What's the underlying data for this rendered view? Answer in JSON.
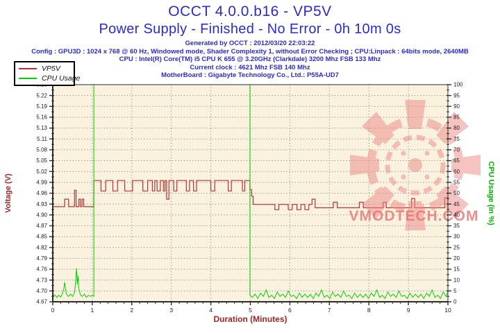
{
  "header": {
    "title": "OCCT 4.0.0.b16 - VP5V",
    "subtitle": "Power Supply - Finished - No Error - 0h 10m 0s",
    "info_lines": [
      "Generated by OCCT : 2012/03/20 22:03:22",
      "Config : GPU3D : 1024 x 768 @ 60 Hz, Windowed mode, Shader Complexity 1, without Error Checking ; CPU:Linpack : 64bits mode, 2640MB",
      "CPU : Intel(R) Core(TM) i5 CPU K 655 @ 3.20GHz (Clarkdale) 3200 Mhz FSB 133 Mhz",
      "Current clock : 4621 Mhz FSB 140 Mhz",
      "MotherBoard : Gigabyte Technology Co., Ltd.: P55A-UD7"
    ],
    "text_color": "#2a2ace"
  },
  "legend": {
    "items": [
      {
        "label": "VP5V",
        "color": "#b43434"
      },
      {
        "label": "CPU Usage",
        "color": "#00d400"
      }
    ]
  },
  "watermark": {
    "text": "VMODTECH.COM",
    "color": "#e86a6a",
    "logo_color": "#ee8888"
  },
  "colors": {
    "plot_background": "#faf1de",
    "axis": "#2b2b2b",
    "grid_horizontal": "#9c9c9c",
    "grid_vertical": "#7d7d7d",
    "voltage_label": "#a02424",
    "duration_label": "#a02424",
    "cpu_label": "#00b400"
  },
  "chart_data": {
    "type": "line",
    "title": "OCCT 4.0.0.b16 - VP5V",
    "xlabel": "Duration (Minutes)",
    "ylabel_left": "Voltage (V)",
    "ylabel_right": "CPU Usage (in %)",
    "x_range": [
      0,
      10
    ],
    "x_major_step": 1,
    "x_minor_step": 0.2,
    "x_tick_labels": [
      "0",
      "1",
      "2",
      "3",
      "4",
      "5",
      "6",
      "7",
      "8",
      "9",
      "10"
    ],
    "y_left_range": [
      4.67,
      5.25
    ],
    "y_left_tick_labels": [
      "4.67",
      "4.70",
      "4.73",
      "4.76",
      "4.79",
      "4.82",
      "4.85",
      "4.87",
      "4.90",
      "4.93",
      "4.96",
      "4.99",
      "5.02",
      "5.05",
      "5.08",
      "5.11",
      "5.13",
      "5.16",
      "5.19",
      "5.22",
      "5.25"
    ],
    "y_right_range": [
      0,
      100
    ],
    "y_right_tick_labels": [
      "0",
      "5",
      "10",
      "15",
      "20",
      "25",
      "30",
      "35",
      "40",
      "45",
      "50",
      "55",
      "60",
      "65",
      "70",
      "75",
      "80",
      "85",
      "90",
      "95",
      "100"
    ],
    "grid": true,
    "legend_position": "top-left",
    "series": [
      {
        "name": "VP5V",
        "axis": "left",
        "color": "#b43434",
        "points": [
          [
            0,
            4.924
          ],
          [
            0.3,
            4.924
          ],
          [
            0.3,
            4.944
          ],
          [
            0.4,
            4.944
          ],
          [
            0.4,
            4.924
          ],
          [
            0.55,
            4.924
          ],
          [
            0.55,
            4.968
          ],
          [
            0.59,
            4.968
          ],
          [
            0.59,
            4.924
          ],
          [
            0.66,
            4.924
          ],
          [
            0.66,
            4.944
          ],
          [
            0.7,
            4.944
          ],
          [
            0.7,
            4.924
          ],
          [
            0.74,
            4.924
          ],
          [
            0.74,
            4.944
          ],
          [
            0.78,
            4.944
          ],
          [
            0.78,
            4.924
          ],
          [
            1.04,
            4.924
          ],
          [
            1.04,
            4.994
          ],
          [
            1.22,
            4.994
          ],
          [
            1.22,
            4.966
          ],
          [
            1.34,
            4.966
          ],
          [
            1.34,
            4.994
          ],
          [
            1.52,
            4.994
          ],
          [
            1.52,
            4.966
          ],
          [
            1.64,
            4.966
          ],
          [
            1.64,
            4.994
          ],
          [
            1.82,
            4.994
          ],
          [
            1.82,
            4.966
          ],
          [
            2.02,
            4.966
          ],
          [
            2.02,
            4.994
          ],
          [
            2.28,
            4.994
          ],
          [
            2.28,
            4.966
          ],
          [
            2.4,
            4.966
          ],
          [
            2.4,
            4.994
          ],
          [
            2.52,
            4.994
          ],
          [
            2.52,
            4.966
          ],
          [
            2.58,
            4.966
          ],
          [
            2.58,
            4.994
          ],
          [
            2.64,
            4.994
          ],
          [
            2.64,
            4.966
          ],
          [
            2.72,
            4.966
          ],
          [
            2.72,
            4.994
          ],
          [
            2.8,
            4.994
          ],
          [
            2.8,
            4.966
          ],
          [
            2.84,
            4.966
          ],
          [
            2.84,
            4.994
          ],
          [
            2.88,
            4.994
          ],
          [
            2.88,
            4.944
          ],
          [
            2.94,
            4.944
          ],
          [
            2.94,
            4.994
          ],
          [
            3.06,
            4.994
          ],
          [
            3.06,
            4.966
          ],
          [
            3.14,
            4.966
          ],
          [
            3.14,
            4.994
          ],
          [
            3.38,
            4.994
          ],
          [
            3.38,
            4.966
          ],
          [
            3.46,
            4.966
          ],
          [
            3.46,
            4.994
          ],
          [
            3.56,
            4.994
          ],
          [
            3.56,
            4.966
          ],
          [
            3.64,
            4.966
          ],
          [
            3.64,
            4.994
          ],
          [
            4.0,
            4.994
          ],
          [
            4.0,
            4.966
          ],
          [
            4.1,
            4.966
          ],
          [
            4.1,
            4.994
          ],
          [
            4.44,
            4.994
          ],
          [
            4.44,
            4.966
          ],
          [
            4.52,
            4.966
          ],
          [
            4.52,
            4.994
          ],
          [
            4.8,
            4.994
          ],
          [
            4.8,
            4.966
          ],
          [
            4.86,
            4.966
          ],
          [
            4.86,
            4.994
          ],
          [
            4.99,
            4.994
          ],
          [
            4.99,
            4.97
          ],
          [
            5.03,
            4.97
          ],
          [
            5.03,
            4.952
          ],
          [
            5.07,
            4.952
          ],
          [
            5.07,
            4.93
          ],
          [
            5.62,
            4.93
          ],
          [
            5.62,
            4.916
          ],
          [
            5.72,
            4.916
          ],
          [
            5.72,
            4.93
          ],
          [
            5.96,
            4.93
          ],
          [
            5.96,
            4.916
          ],
          [
            6.06,
            4.916
          ],
          [
            6.06,
            4.93
          ],
          [
            6.18,
            4.93
          ],
          [
            6.18,
            4.916
          ],
          [
            6.28,
            4.916
          ],
          [
            6.28,
            4.93
          ],
          [
            6.38,
            4.93
          ],
          [
            6.38,
            4.916
          ],
          [
            6.48,
            4.916
          ],
          [
            6.48,
            4.93
          ],
          [
            6.56,
            4.93
          ],
          [
            6.56,
            4.944
          ],
          [
            6.64,
            4.944
          ],
          [
            6.64,
            4.921
          ],
          [
            7.1,
            4.921
          ],
          [
            7.1,
            4.936
          ],
          [
            7.2,
            4.936
          ],
          [
            7.2,
            4.921
          ],
          [
            7.76,
            4.921
          ],
          [
            7.76,
            4.936
          ],
          [
            7.86,
            4.936
          ],
          [
            7.86,
            4.921
          ],
          [
            8.36,
            4.921
          ],
          [
            8.36,
            4.936
          ],
          [
            8.44,
            4.936
          ],
          [
            8.44,
            4.921
          ],
          [
            9.08,
            4.921
          ],
          [
            9.08,
            4.946
          ],
          [
            9.16,
            4.946
          ],
          [
            9.16,
            4.921
          ],
          [
            9.92,
            4.921
          ],
          [
            9.92,
            4.948
          ],
          [
            10,
            4.948
          ]
        ]
      },
      {
        "name": "CPU Usage",
        "axis": "right",
        "color": "#00d400",
        "points": [
          [
            0,
            2.5
          ],
          [
            0.05,
            3.2
          ],
          [
            0.1,
            2.0
          ],
          [
            0.15,
            3.0
          ],
          [
            0.2,
            2.2
          ],
          [
            0.25,
            4.0
          ],
          [
            0.28,
            6.0
          ],
          [
            0.3,
            9.0
          ],
          [
            0.33,
            5.0
          ],
          [
            0.36,
            3.0
          ],
          [
            0.4,
            2.5
          ],
          [
            0.45,
            3.5
          ],
          [
            0.5,
            2.5
          ],
          [
            0.55,
            4.0
          ],
          [
            0.58,
            10.0
          ],
          [
            0.6,
            15.5
          ],
          [
            0.62,
            8.0
          ],
          [
            0.64,
            12.0
          ],
          [
            0.66,
            6.0
          ],
          [
            0.7,
            3.0
          ],
          [
            0.75,
            2.5
          ],
          [
            0.8,
            3.5
          ],
          [
            0.85,
            2.0
          ],
          [
            0.9,
            3.0
          ],
          [
            0.95,
            2.5
          ],
          [
            1.0,
            3.0
          ],
          [
            1.04,
            2.5
          ],
          [
            1.04,
            100
          ],
          [
            4.99,
            100
          ],
          [
            4.99,
            3.0
          ],
          [
            5.05,
            2.0
          ],
          [
            5.12,
            3.5
          ],
          [
            5.19,
            1.5
          ],
          [
            5.26,
            4.0
          ],
          [
            5.33,
            2.5
          ],
          [
            5.4,
            5.5
          ],
          [
            5.47,
            2.0
          ],
          [
            5.54,
            3.0
          ],
          [
            5.61,
            1.5
          ],
          [
            5.68,
            4.5
          ],
          [
            5.75,
            2.5
          ],
          [
            5.82,
            3.5
          ],
          [
            5.89,
            2.0
          ],
          [
            5.96,
            5.0
          ],
          [
            6.03,
            2.5
          ],
          [
            6.1,
            3.0
          ],
          [
            6.17,
            1.5
          ],
          [
            6.24,
            4.0
          ],
          [
            6.31,
            2.0
          ],
          [
            6.38,
            3.5
          ],
          [
            6.45,
            2.0
          ],
          [
            6.52,
            3.5
          ],
          [
            6.59,
            1.5
          ],
          [
            6.66,
            4.0
          ],
          [
            6.73,
            2.5
          ],
          [
            6.8,
            5.5
          ],
          [
            6.87,
            2.0
          ],
          [
            6.94,
            3.0
          ],
          [
            7.01,
            1.5
          ],
          [
            7.08,
            4.5
          ],
          [
            7.15,
            2.5
          ],
          [
            7.22,
            3.5
          ],
          [
            7.29,
            2.0
          ],
          [
            7.36,
            5.0
          ],
          [
            7.43,
            2.5
          ],
          [
            7.5,
            3.0
          ],
          [
            7.57,
            1.5
          ],
          [
            7.64,
            4.0
          ],
          [
            7.71,
            2.0
          ],
          [
            7.78,
            3.5
          ],
          [
            7.85,
            2.0
          ],
          [
            7.92,
            3.5
          ],
          [
            7.99,
            1.5
          ],
          [
            8.06,
            4.0
          ],
          [
            8.13,
            2.5
          ],
          [
            8.2,
            5.5
          ],
          [
            8.27,
            2.0
          ],
          [
            8.34,
            3.0
          ],
          [
            8.41,
            1.5
          ],
          [
            8.48,
            4.5
          ],
          [
            8.55,
            2.5
          ],
          [
            8.62,
            3.5
          ],
          [
            8.69,
            2.0
          ],
          [
            8.76,
            5.0
          ],
          [
            8.83,
            2.5
          ],
          [
            8.9,
            3.0
          ],
          [
            8.97,
            1.5
          ],
          [
            9.04,
            4.0
          ],
          [
            9.11,
            2.0
          ],
          [
            9.18,
            3.5
          ],
          [
            9.25,
            2.0
          ],
          [
            9.32,
            3.5
          ],
          [
            9.39,
            1.5
          ],
          [
            9.46,
            4.0
          ],
          [
            9.53,
            2.5
          ],
          [
            9.6,
            5.5
          ],
          [
            9.67,
            2.0
          ],
          [
            9.74,
            3.0
          ],
          [
            9.81,
            1.5
          ],
          [
            9.88,
            4.5
          ],
          [
            9.95,
            2.5
          ],
          [
            10,
            4.5
          ]
        ]
      }
    ]
  }
}
